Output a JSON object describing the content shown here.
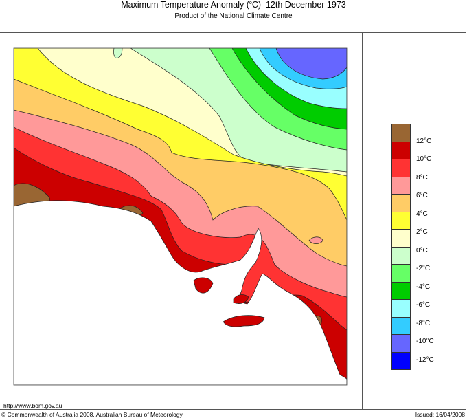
{
  "header": {
    "title_prefix": "Maximum Temperature Anomaly (",
    "title_deg": "o",
    "title_unit": "C)",
    "title_date": "12th December 1973",
    "subtitle": "Product of the National Climate Centre"
  },
  "legend": {
    "colors": [
      "#996633",
      "#cc0000",
      "#ff3333",
      "#ff9999",
      "#ffcc66",
      "#ffff33",
      "#ffffcc",
      "#ccffcc",
      "#66ff66",
      "#00cc00",
      "#99ffff",
      "#33ccff",
      "#6666ff",
      "#0000ff"
    ],
    "labels": [
      "12°C",
      "10°C",
      "8°C",
      "6°C",
      "4°C",
      "2°C",
      "0°C",
      "-2°C",
      "-4°C",
      "-6°C",
      "-8°C",
      "-10°C",
      "-12°C"
    ]
  },
  "footer": {
    "url": "http://www.bom.gov.au",
    "copyright": "© Commonwealth of Australia 2008, Australian Bureau of Meteorology",
    "issued": "Issued: 16/04/2008"
  }
}
